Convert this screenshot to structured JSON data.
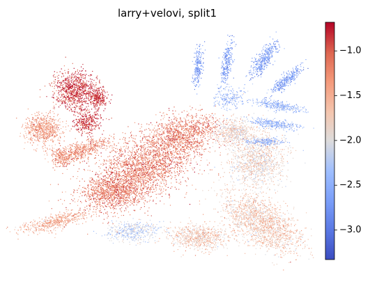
{
  "chart_data": {
    "type": "scatter",
    "title": "larry+velovi, split1",
    "xlabel": "",
    "ylabel": "",
    "grid": false,
    "legend": "none",
    "colormap": "coolwarm",
    "colorbar": {
      "location": "right",
      "vmin": -3.33,
      "vmax": -0.68,
      "ticks": [
        -1.0,
        -1.5,
        -2.0,
        -2.5,
        -3.0
      ],
      "tick_labels": [
        "−1.0",
        "−1.5",
        "−2.0",
        "−2.5",
        "−3.0"
      ]
    },
    "regions": [
      {
        "name": "upper-left-lobe",
        "value": -0.85
      },
      {
        "name": "far-left-lobe",
        "value": -1.35
      },
      {
        "name": "left-arm",
        "value": -1.25
      },
      {
        "name": "central-body",
        "value": -1.15
      },
      {
        "name": "lower-left-tail",
        "value": -1.45
      },
      {
        "name": "lower-middle-patch",
        "value": -2.15
      },
      {
        "name": "lower-right-body",
        "value": -1.7
      },
      {
        "name": "right-side-body",
        "value": -1.85
      },
      {
        "name": "upper-right-fingers",
        "value": -2.7
      },
      {
        "name": "right-fan-strands",
        "value": -2.45
      }
    ]
  },
  "colors": {
    "cmap_low": "#3b4cc0",
    "cmap_mid": "#dddddd",
    "cmap_high": "#b40426",
    "axis": "#000000",
    "background": "#ffffff"
  }
}
